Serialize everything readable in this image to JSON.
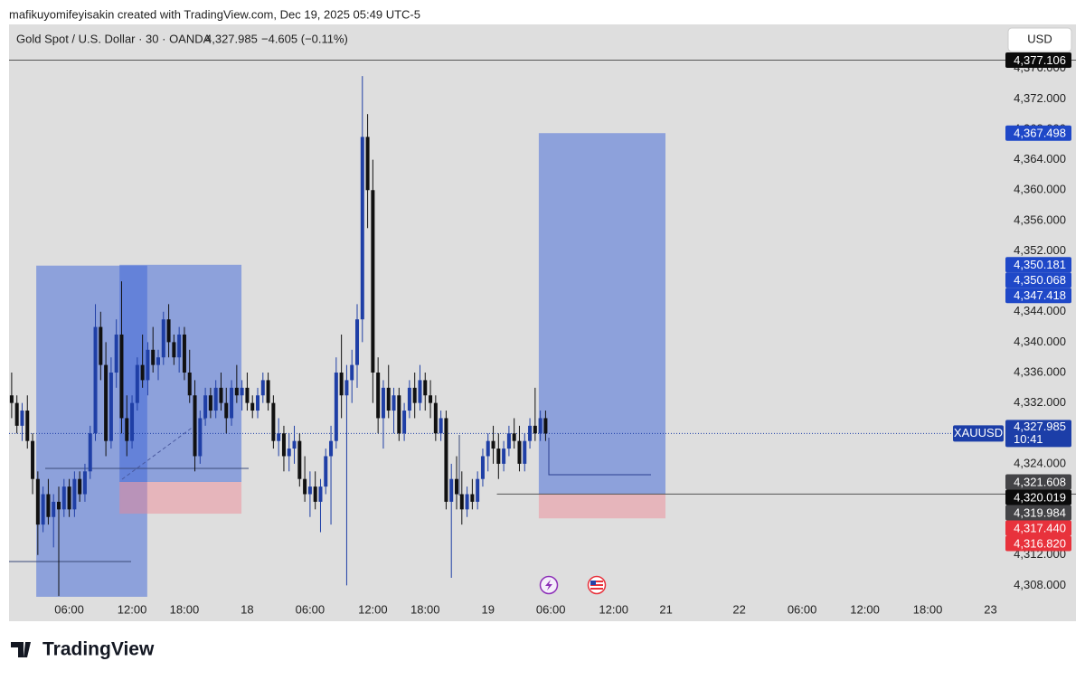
{
  "header": {
    "credit": "mafikuyomifeyisakin created with TradingView.com, Dec 19, 2025 05:49 UTC-5"
  },
  "legend": {
    "symbol": "Gold Spot / U.S. Dollar · 30 · OANDA",
    "price": "4,327.985",
    "change": "−4.605 (−0.11%)"
  },
  "currency_button": "USD",
  "footer": {
    "brand": "TradingView"
  },
  "chart_data": {
    "type": "candlestick",
    "up_color": "#1f3fa6",
    "down_color": "#111111",
    "xlim": [
      -0.5,
      189.5
    ],
    "ylim": [
      4306.5,
      4381.8
    ],
    "xticks": [
      {
        "value": 11,
        "label": "06:00"
      },
      {
        "value": 23,
        "label": "12:00"
      },
      {
        "value": 33,
        "label": "18:00"
      },
      {
        "value": 45,
        "label": "18"
      },
      {
        "value": 57,
        "label": "06:00"
      },
      {
        "value": 69,
        "label": "12:00"
      },
      {
        "value": 79,
        "label": "18:00"
      },
      {
        "value": 91,
        "label": "19"
      },
      {
        "value": 103,
        "label": "06:00"
      },
      {
        "value": 115,
        "label": "12:00"
      },
      {
        "value": 125,
        "label": "21"
      },
      {
        "value": 139,
        "label": "22"
      },
      {
        "value": 151,
        "label": "06:00"
      },
      {
        "value": 163,
        "label": "12:00"
      },
      {
        "value": 175,
        "label": "18:00"
      },
      {
        "value": 187,
        "label": "23"
      }
    ],
    "yticks": [
      {
        "value": 4308,
        "label": "4,308.000"
      },
      {
        "value": 4312,
        "label": "4,312.000"
      },
      {
        "value": 4316,
        "label": "4,316.000"
      },
      {
        "value": 4320,
        "label": "4,320.000"
      },
      {
        "value": 4324,
        "label": "4,324.000"
      },
      {
        "value": 4328,
        "label": "4,328.000"
      },
      {
        "value": 4332,
        "label": "4,332.000"
      },
      {
        "value": 4336,
        "label": "4,336.000"
      },
      {
        "value": 4340,
        "label": "4,340.000"
      },
      {
        "value": 4344,
        "label": "4,344.000"
      },
      {
        "value": 4348,
        "label": "4,348.000"
      },
      {
        "value": 4352,
        "label": "4,352.000"
      },
      {
        "value": 4356,
        "label": "4,356.000"
      },
      {
        "value": 4360,
        "label": "4,360.000"
      },
      {
        "value": 4364,
        "label": "4,364.000"
      },
      {
        "value": 4368,
        "label": "4,368.000"
      },
      {
        "value": 4372,
        "label": "4,372.000"
      },
      {
        "value": 4376,
        "label": "4,376.000"
      }
    ],
    "ohlc": [
      [
        4333,
        4336,
        4330,
        4332
      ],
      [
        4332,
        4333,
        4328,
        4329
      ],
      [
        4329,
        4332,
        4327,
        4331
      ],
      [
        4331,
        4333,
        4326,
        4327
      ],
      [
        4327,
        4328,
        4320,
        4322
      ],
      [
        4322,
        4323,
        4312,
        4316
      ],
      [
        4316,
        4321,
        4315,
        4320
      ],
      [
        4320,
        4322,
        4316,
        4317
      ],
      [
        4317,
        4320,
        4313,
        4319
      ],
      [
        4319,
        4321,
        4306.6,
        4318
      ],
      [
        4318,
        4322,
        4317,
        4321
      ],
      [
        4321,
        4322,
        4317,
        4318
      ],
      [
        4318,
        4323,
        4317,
        4322
      ],
      [
        4322,
        4323,
        4319,
        4320
      ],
      [
        4320,
        4324,
        4319,
        4323
      ],
      [
        4323,
        4329,
        4322,
        4328
      ],
      [
        4328,
        4345,
        4327,
        4342
      ],
      [
        4342,
        4344,
        4335,
        4337
      ],
      [
        4337,
        4340,
        4325,
        4327
      ],
      [
        4327,
        4338,
        4326,
        4336
      ],
      [
        4336,
        4343,
        4334,
        4341
      ],
      [
        4341,
        4348,
        4328,
        4330
      ],
      [
        4330,
        4333,
        4325,
        4327
      ],
      [
        4327,
        4333,
        4326,
        4332
      ],
      [
        4332,
        4338,
        4331,
        4337
      ],
      [
        4337,
        4341,
        4334,
        4335
      ],
      [
        4335,
        4340,
        4333,
        4339
      ],
      [
        4339,
        4342,
        4336,
        4337
      ],
      [
        4337,
        4339,
        4335,
        4338
      ],
      [
        4338,
        4344,
        4337,
        4343
      ],
      [
        4343,
        4345,
        4338,
        4340
      ],
      [
        4340,
        4341,
        4337,
        4338
      ],
      [
        4338,
        4342,
        4336,
        4341
      ],
      [
        4341,
        4342,
        4335,
        4336
      ],
      [
        4336,
        4339,
        4332,
        4333
      ],
      [
        4333,
        4335,
        4323,
        4325
      ],
      [
        4325,
        4331,
        4324,
        4330
      ],
      [
        4330,
        4334,
        4329,
        4333
      ],
      [
        4333,
        4334,
        4330,
        4331
      ],
      [
        4331,
        4335,
        4330,
        4334
      ],
      [
        4334,
        4336,
        4331,
        4332
      ],
      [
        4332,
        4334,
        4328,
        4330
      ],
      [
        4330,
        4335,
        4329,
        4334
      ],
      [
        4334,
        4337,
        4332,
        4333
      ],
      [
        4333,
        4335,
        4331,
        4334
      ],
      [
        4334,
        4336,
        4331,
        4332
      ],
      [
        4332,
        4333,
        4330,
        4331
      ],
      [
        4331,
        4334,
        4330,
        4333
      ],
      [
        4333,
        4336,
        4332,
        4335
      ],
      [
        4335,
        4336,
        4331,
        4332
      ],
      [
        4332,
        4333,
        4326,
        4327
      ],
      [
        4327,
        4330,
        4325,
        4328
      ],
      [
        4328,
        4329,
        4323,
        4325
      ],
      [
        4325,
        4328,
        4323,
        4326
      ],
      [
        4326,
        4329,
        4324,
        4327
      ],
      [
        4327,
        4328,
        4321,
        4322
      ],
      [
        4322,
        4325,
        4319,
        4320
      ],
      [
        4320,
        4323,
        4317,
        4321
      ],
      [
        4321,
        4323,
        4318,
        4319
      ],
      [
        4319,
        4322,
        4315,
        4321
      ],
      [
        4321,
        4326,
        4320,
        4325
      ],
      [
        4325,
        4329,
        4316,
        4327
      ],
      [
        4327,
        4338,
        4326,
        4336
      ],
      [
        4336,
        4341,
        4330,
        4333
      ],
      [
        4333,
        4337,
        4308,
        4335
      ],
      [
        4335,
        4339,
        4332,
        4337
      ],
      [
        4337,
        4345,
        4334,
        4343
      ],
      [
        4343,
        4375,
        4340,
        4367
      ],
      [
        4367,
        4370,
        4355,
        4360
      ],
      [
        4360,
        4364,
        4332,
        4336
      ],
      [
        4336,
        4338,
        4328,
        4330
      ],
      [
        4330,
        4335,
        4326,
        4334
      ],
      [
        4334,
        4337,
        4330,
        4331
      ],
      [
        4331,
        4334,
        4328,
        4333
      ],
      [
        4333,
        4334,
        4327,
        4328
      ],
      [
        4328,
        4332,
        4327,
        4331
      ],
      [
        4331,
        4335,
        4330,
        4334
      ],
      [
        4334,
        4336,
        4330,
        4332
      ],
      [
        4332,
        4337,
        4331,
        4335
      ],
      [
        4335,
        4336,
        4331,
        4333
      ],
      [
        4333,
        4335,
        4330,
        4332
      ],
      [
        4332,
        4333,
        4327,
        4328
      ],
      [
        4328,
        4331,
        4327,
        4330
      ],
      [
        4330,
        4331,
        4318,
        4319
      ],
      [
        4319,
        4324,
        4309,
        4322
      ],
      [
        4322,
        4325,
        4318,
        4320
      ],
      [
        4320,
        4323,
        4316,
        4318
      ],
      [
        4318,
        4321,
        4317,
        4320
      ],
      [
        4320,
        4322,
        4318,
        4319
      ],
      [
        4319,
        4323,
        4318,
        4322
      ],
      [
        4322,
        4326,
        4321,
        4325
      ],
      [
        4325,
        4328,
        4323,
        4327
      ],
      [
        4327,
        4329,
        4324,
        4326
      ],
      [
        4326,
        4328,
        4322,
        4324
      ],
      [
        4324,
        4327,
        4323,
        4326
      ],
      [
        4326,
        4329,
        4325,
        4328
      ],
      [
        4328,
        4330,
        4326,
        4327
      ],
      [
        4327,
        4329,
        4323,
        4324
      ],
      [
        4324,
        4328,
        4323,
        4327
      ],
      [
        4327,
        4330,
        4326,
        4329
      ],
      [
        4329,
        4334,
        4327,
        4328
      ],
      [
        4328,
        4331,
        4327,
        4330
      ],
      [
        4330,
        4331,
        4327,
        4327.985
      ]
    ],
    "positions": [
      {
        "start": 4.7,
        "end": 25.9,
        "target": 4350.068
      },
      {
        "start": 20.6,
        "end": 43.9,
        "target": 4350.181,
        "entry": 4321.608,
        "stop": 4317.44
      },
      {
        "start": 100.7,
        "end": 124.9,
        "target": 4367.498,
        "entry": 4320.019,
        "stop": 4316.82
      }
    ],
    "levels": [
      {
        "price": 4377.106,
        "from": -0.5
      },
      {
        "price": 4320.019,
        "from": 92.7
      }
    ],
    "symbol_badge": {
      "name": "XAUUSD",
      "value": 4327.985,
      "value_label": "4,327.985",
      "countdown": "10:41",
      "color": "#1c3ea8"
    },
    "price_badges": [
      {
        "value": 4377.106,
        "label": "4,377.106",
        "color": "#0b0b0b"
      },
      {
        "value": 4367.498,
        "label": "4,367.498",
        "color": "#1f48c8"
      },
      {
        "value": 4350.181,
        "label": "4,350.181",
        "color": "#1f48c8"
      },
      {
        "value": 4350.068,
        "label": "4,350.068",
        "color": "#1f48c8"
      },
      {
        "value": 4347.418,
        "label": "4,347.418",
        "color": "#1f48c8"
      },
      {
        "value": 4321.608,
        "label": "4,321.608",
        "color": "#444447"
      },
      {
        "value": 4320.019,
        "label": "4,320.019",
        "color": "#0b0b0b"
      },
      {
        "value": 4319.984,
        "label": "4,319.984",
        "color": "#444447"
      },
      {
        "value": 4317.44,
        "label": "4,317.440",
        "color": "#e8323c"
      },
      {
        "value": 4316.82,
        "label": "4,316.820",
        "color": "#e8323c"
      }
    ]
  }
}
